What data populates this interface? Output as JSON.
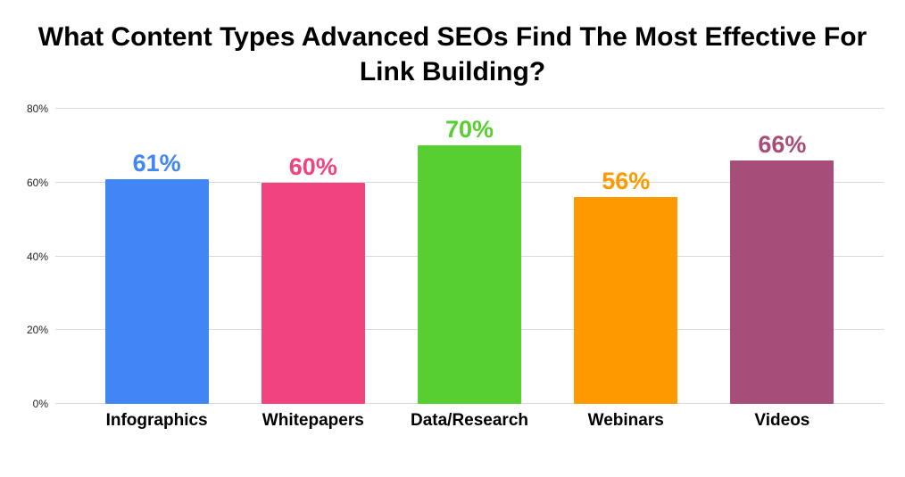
{
  "title": "What Content Types Advanced SEOs Find The Most Effective For Link Building?",
  "chart_data": {
    "type": "bar",
    "title": "What Content Types Advanced SEOs Find The Most Effective For Link Building?",
    "categories": [
      "Infographics",
      "Whitepapers",
      "Data/Research",
      "Webinars",
      "Videos"
    ],
    "values": [
      61,
      60,
      70,
      56,
      66
    ],
    "value_labels": [
      "61%",
      "60%",
      "70%",
      "56%",
      "66%"
    ],
    "bar_colors": [
      "#4285F4",
      "#F0437F",
      "#57CF30",
      "#FF9900",
      "#A64D79"
    ],
    "xlabel": "",
    "ylabel": "",
    "ylim": [
      0,
      80
    ],
    "yticks": [
      0,
      20,
      40,
      60,
      80
    ],
    "ytick_labels": [
      "0%",
      "20%",
      "40%",
      "60%",
      "80%"
    ],
    "grid": true,
    "legend": false,
    "background_color": "#ffffff",
    "gridline_color": "#d9d9d9"
  }
}
